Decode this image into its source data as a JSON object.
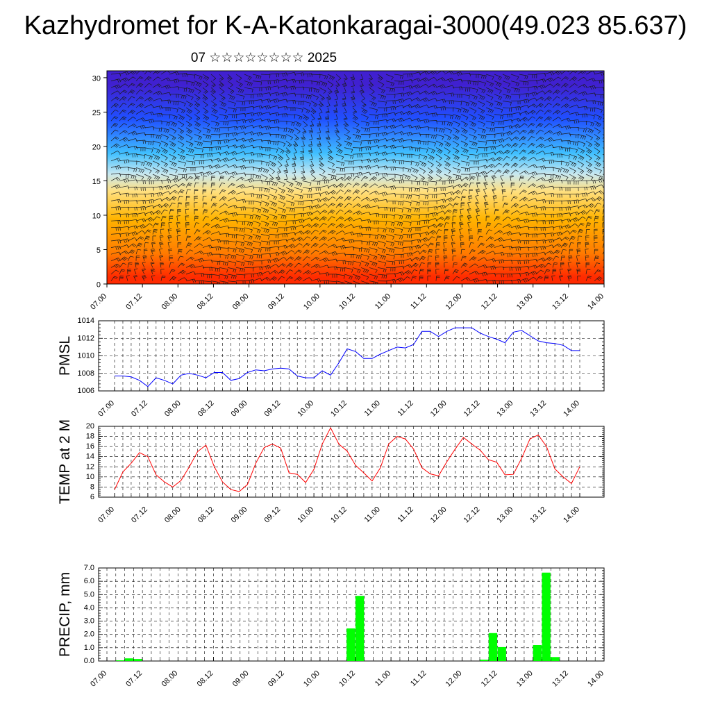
{
  "header": {
    "title": "Kazhydromet for K-A-Katonkaragai-3000(49.023 85.637)",
    "subtitle": "07 ☆☆☆☆☆☆☆☆ 2025"
  },
  "chart_data": [
    {
      "type": "heatmap",
      "description_panel": "temperature-colored vertical cross-section with wind barbs",
      "x_ticks": [
        "07.00",
        "07.12",
        "08.00",
        "08.12",
        "09.00",
        "09.12",
        "10.00",
        "10.12",
        "11.00",
        "11.12",
        "12.00",
        "12.12",
        "13.00",
        "13.12",
        "14.00"
      ],
      "y_ticks": [
        0,
        5,
        10,
        15,
        20,
        25,
        30
      ],
      "ylim": [
        0,
        31
      ],
      "colors": [
        "#ff2a00",
        "#ff7b00",
        "#ffb400",
        "#ffe080",
        "#c8e8f0",
        "#40c0ff",
        "#2050ff",
        "#4020d0"
      ],
      "color_bands_top_km": [
        2,
        7,
        12,
        15,
        17,
        21,
        27,
        31
      ],
      "wind_barbs": true
    },
    {
      "type": "line",
      "ylabel": "PMSL",
      "ylim": [
        1006,
        1014
      ],
      "y_ticks": [
        1006,
        1008,
        1010,
        1012,
        1014
      ],
      "x_ticks": [
        "07.00",
        "07.12",
        "08.00",
        "08.12",
        "09.00",
        "09.12",
        "10.00",
        "10.12",
        "11.00",
        "11.12",
        "12.00",
        "12.12",
        "13.00",
        "13.12",
        "14.00"
      ],
      "color": "#0000ff",
      "series": [
        {
          "values": [
            1007.7,
            1007.7,
            1007.6,
            1007.2,
            1006.5,
            1007.5,
            1007.2,
            1006.8,
            1007.8,
            1008.0,
            1007.8,
            1007.5,
            1008.1,
            1008.1,
            1007.2,
            1007.4,
            1008.1,
            1008.4,
            1008.3,
            1008.5,
            1008.6,
            1008.5,
            1007.7,
            1007.5,
            1007.5,
            1008.3,
            1007.8,
            1009.2,
            1010.8,
            1010.5,
            1009.7,
            1009.7,
            1010.2,
            1010.6,
            1011.0,
            1010.9,
            1011.3,
            1012.8,
            1012.8,
            1012.2,
            1012.8,
            1013.2,
            1013.2,
            1013.2,
            1012.6,
            1012.2,
            1011.9,
            1011.5,
            1012.7,
            1012.9,
            1012.3,
            1011.7,
            1011.5,
            1011.4,
            1011.2,
            1010.6,
            1010.6
          ]
        }
      ]
    },
    {
      "type": "line",
      "ylabel": "TEMP at 2 M",
      "ylim": [
        6,
        20
      ],
      "y_ticks": [
        6,
        8,
        10,
        12,
        14,
        16,
        18,
        20
      ],
      "x_ticks": [
        "07.00",
        "07.12",
        "08.00",
        "08.12",
        "09.00",
        "09.12",
        "10.00",
        "10.12",
        "11.00",
        "11.12",
        "12.00",
        "12.12",
        "13.00",
        "13.12",
        "14.00"
      ],
      "color": "#ff0000",
      "series": [
        {
          "values": [
            7.5,
            11.0,
            12.7,
            14.8,
            14.0,
            10.4,
            9.0,
            8.0,
            9.3,
            12.0,
            15.0,
            16.3,
            12.0,
            9.0,
            7.5,
            7.1,
            8.5,
            12.7,
            15.8,
            16.5,
            15.7,
            10.8,
            10.5,
            8.9,
            11.5,
            16.5,
            19.7,
            16.5,
            15.1,
            12.3,
            10.8,
            9.2,
            11.8,
            16.5,
            18.0,
            17.5,
            15.5,
            11.8,
            10.6,
            10.2,
            13.0,
            15.5,
            17.8,
            16.5,
            15.3,
            13.4,
            12.9,
            10.4,
            10.5,
            13.7,
            17.5,
            18.3,
            16.0,
            11.6,
            10.0,
            8.7,
            12.0
          ]
        }
      ]
    },
    {
      "type": "bar",
      "ylabel": "PRECIP, mm",
      "ylim": [
        0,
        7
      ],
      "y_ticks": [
        "0.0",
        "1.0",
        "2.0",
        "3.0",
        "4.0",
        "5.0",
        "6.0",
        "7.0"
      ],
      "x_ticks": [
        "07.00",
        "07.12",
        "08.00",
        "08.12",
        "09.00",
        "09.12",
        "10.00",
        "10.12",
        "11.00",
        "11.12",
        "12.00",
        "12.12",
        "13.00",
        "13.12",
        "14.00"
      ],
      "color": "#00ff00",
      "series": [
        {
          "values": [
            0,
            0.05,
            0.2,
            0.15,
            0,
            0,
            0,
            0,
            0,
            0,
            0,
            0,
            0,
            0,
            0,
            0,
            0,
            0,
            0,
            0,
            0,
            0,
            0,
            0,
            0,
            0,
            0,
            2.45,
            4.9,
            0,
            0,
            0,
            0,
            0,
            0,
            0,
            0,
            0,
            0,
            0,
            0,
            0,
            0.1,
            2.1,
            1.05,
            0,
            0,
            0,
            1.2,
            6.65,
            0.3,
            0,
            0,
            0,
            0,
            0
          ]
        }
      ]
    }
  ]
}
